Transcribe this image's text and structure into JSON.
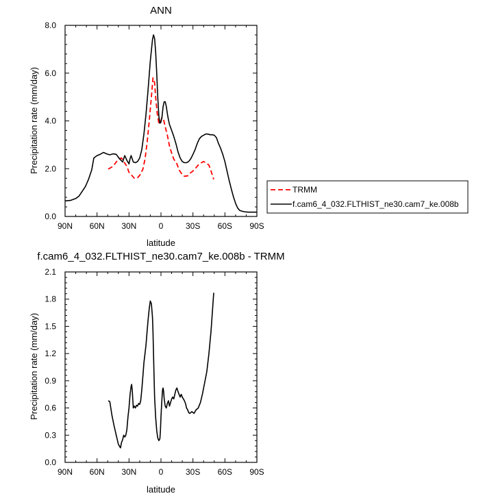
{
  "chart_data": [
    {
      "type": "line",
      "title": "ANN",
      "xlabel": "latitude",
      "ylabel": "Precipitation rate (mm/day)",
      "xlim": [
        90,
        -90
      ],
      "ylim": [
        0,
        8
      ],
      "xticks": [
        90,
        60,
        30,
        0,
        -30,
        -60,
        -90
      ],
      "xtick_labels": [
        "90N",
        "60N",
        "30N",
        "0",
        "30S",
        "60S",
        "90S"
      ],
      "yticks": [
        0,
        2,
        4,
        6,
        8
      ],
      "ytick_labels": [
        "0.0",
        "2.0",
        "4.0",
        "6.0",
        "8.0"
      ],
      "grid": false,
      "legend_position": "outside-right",
      "series": [
        {
          "name": "TRMM",
          "color": "#ff0000",
          "style": "dashed",
          "x": [
            49.5,
            45,
            40,
            37,
            35,
            32,
            30,
            27,
            25,
            22,
            20,
            17,
            15,
            13,
            11,
            9,
            7.5,
            6,
            5,
            3.5,
            2,
            0.5,
            -1,
            -2.5,
            -4,
            -6,
            -8,
            -10,
            -12,
            -15,
            -17,
            -20,
            -22,
            -25,
            -27,
            -30,
            -32,
            -35,
            -38,
            -40,
            -42,
            -45,
            -47,
            -49.5
          ],
          "y": [
            1.98,
            2.1,
            2.4,
            2.45,
            2.3,
            2.1,
            1.85,
            1.7,
            1.6,
            1.62,
            1.72,
            1.98,
            2.4,
            3.1,
            4.0,
            5.0,
            5.8,
            5.6,
            5.0,
            4.3,
            3.9,
            3.95,
            4.15,
            4.05,
            3.75,
            3.4,
            2.95,
            2.65,
            2.4,
            2.2,
            1.95,
            1.75,
            1.68,
            1.7,
            1.8,
            1.9,
            2.0,
            2.15,
            2.25,
            2.3,
            2.25,
            2.15,
            1.9,
            1.55
          ]
        },
        {
          "name": "f.cam6_4_032.FLTHIST_ne30.cam7_ke.008b",
          "color": "#000000",
          "style": "solid",
          "x": [
            90,
            85,
            80,
            77,
            74,
            71,
            68,
            65,
            63,
            60,
            57,
            54,
            51,
            48,
            45,
            42,
            39,
            36,
            34,
            32,
            30,
            29,
            28,
            26,
            24,
            22,
            20,
            18,
            16,
            14,
            12,
            10,
            8,
            7,
            6,
            5,
            4,
            3,
            2,
            1,
            0,
            -1,
            -2,
            -3,
            -4,
            -5,
            -6,
            -7,
            -8,
            -10,
            -12,
            -14,
            -16,
            -18,
            -20,
            -22,
            -24,
            -26,
            -28,
            -30,
            -32,
            -34,
            -36,
            -38,
            -40,
            -42,
            -44,
            -46,
            -48,
            -50,
            -52,
            -54,
            -56,
            -58,
            -60,
            -62,
            -64,
            -66,
            -68,
            -70,
            -72,
            -74,
            -76,
            -78,
            -80,
            -82,
            -84,
            -86,
            -88,
            -90
          ],
          "y": [
            0.65,
            0.67,
            0.75,
            0.85,
            1.05,
            1.25,
            1.55,
            1.95,
            2.45,
            2.55,
            2.6,
            2.68,
            2.62,
            2.58,
            2.62,
            2.6,
            2.42,
            2.28,
            2.55,
            2.35,
            2.2,
            2.42,
            2.55,
            2.28,
            2.25,
            2.3,
            2.45,
            2.8,
            3.45,
            4.3,
            5.35,
            6.5,
            7.4,
            7.6,
            7.45,
            6.9,
            6.0,
            5.0,
            4.2,
            3.9,
            3.95,
            4.2,
            4.6,
            4.8,
            4.8,
            4.6,
            4.3,
            4.05,
            3.85,
            3.6,
            3.35,
            3.05,
            2.7,
            2.45,
            2.3,
            2.25,
            2.25,
            2.3,
            2.42,
            2.6,
            2.8,
            3.05,
            3.25,
            3.35,
            3.4,
            3.45,
            3.45,
            3.42,
            3.42,
            3.4,
            3.3,
            3.05,
            2.85,
            2.6,
            2.3,
            1.9,
            1.5,
            1.15,
            0.82,
            0.55,
            0.35,
            0.25,
            0.22,
            0.2,
            0.19,
            0.18,
            0.18,
            0.18,
            0.18,
            0.18
          ]
        }
      ]
    },
    {
      "type": "line",
      "title": "f.cam6_4_032.FLTHIST_ne30.cam7_ke.008b - TRMM",
      "xlabel": "latitude",
      "ylabel": "Precipitation rate (mm/day)",
      "xlim": [
        90,
        -90
      ],
      "ylim": [
        0,
        2.1
      ],
      "xticks": [
        90,
        60,
        30,
        0,
        -30,
        -60,
        -90
      ],
      "xtick_labels": [
        "90N",
        "60N",
        "30N",
        "0",
        "30S",
        "60S",
        "90S"
      ],
      "yticks": [
        0,
        0.3,
        0.6,
        0.9,
        1.2,
        1.5,
        1.8,
        2.1
      ],
      "ytick_labels": [
        "0.0",
        "0.3",
        "0.6",
        "0.9",
        "1.2",
        "1.5",
        "1.8",
        "2.1"
      ],
      "grid": false,
      "series": [
        {
          "color": "#000000",
          "style": "solid",
          "x": [
            49.5,
            48,
            46,
            44,
            42,
            40,
            39,
            38,
            37,
            36,
            35,
            34,
            33,
            32,
            31,
            30,
            29,
            28,
            27.5,
            27,
            26.5,
            26,
            25,
            24,
            23,
            22,
            21,
            20,
            19,
            18,
            17,
            16,
            15,
            14,
            13,
            12,
            11,
            10,
            9,
            8,
            7.5,
            7,
            6.5,
            6,
            5,
            4,
            3,
            2,
            1,
            0.5,
            0,
            -0.5,
            -1,
            -1.5,
            -2,
            -2.5,
            -3,
            -4,
            -5,
            -6,
            -7,
            -8,
            -9,
            -10,
            -11,
            -12,
            -13,
            -14,
            -15,
            -16,
            -17,
            -18,
            -19,
            -20,
            -21,
            -22,
            -23,
            -24,
            -25,
            -26,
            -27,
            -28,
            -29,
            -30,
            -31,
            -33,
            -35,
            -37,
            -39,
            -41,
            -43,
            -45,
            -47,
            -49.5
          ],
          "y": [
            0.68,
            0.67,
            0.52,
            0.4,
            0.3,
            0.2,
            0.18,
            0.16,
            0.22,
            0.25,
            0.3,
            0.28,
            0.3,
            0.36,
            0.5,
            0.6,
            0.75,
            0.84,
            0.86,
            0.8,
            0.7,
            0.6,
            0.62,
            0.6,
            0.63,
            0.62,
            0.65,
            0.64,
            0.68,
            0.8,
            0.95,
            1.1,
            1.2,
            1.3,
            1.45,
            1.58,
            1.7,
            1.78,
            1.75,
            1.6,
            1.45,
            1.2,
            0.95,
            0.72,
            0.5,
            0.35,
            0.27,
            0.24,
            0.26,
            0.35,
            0.5,
            0.62,
            0.72,
            0.8,
            0.82,
            0.78,
            0.7,
            0.62,
            0.6,
            0.65,
            0.68,
            0.62,
            0.66,
            0.7,
            0.72,
            0.7,
            0.75,
            0.8,
            0.82,
            0.78,
            0.75,
            0.72,
            0.75,
            0.72,
            0.7,
            0.68,
            0.65,
            0.6,
            0.58,
            0.55,
            0.54,
            0.55,
            0.56,
            0.55,
            0.54,
            0.58,
            0.6,
            0.66,
            0.76,
            0.88,
            1.0,
            1.2,
            1.45,
            1.87
          ]
        }
      ]
    }
  ]
}
